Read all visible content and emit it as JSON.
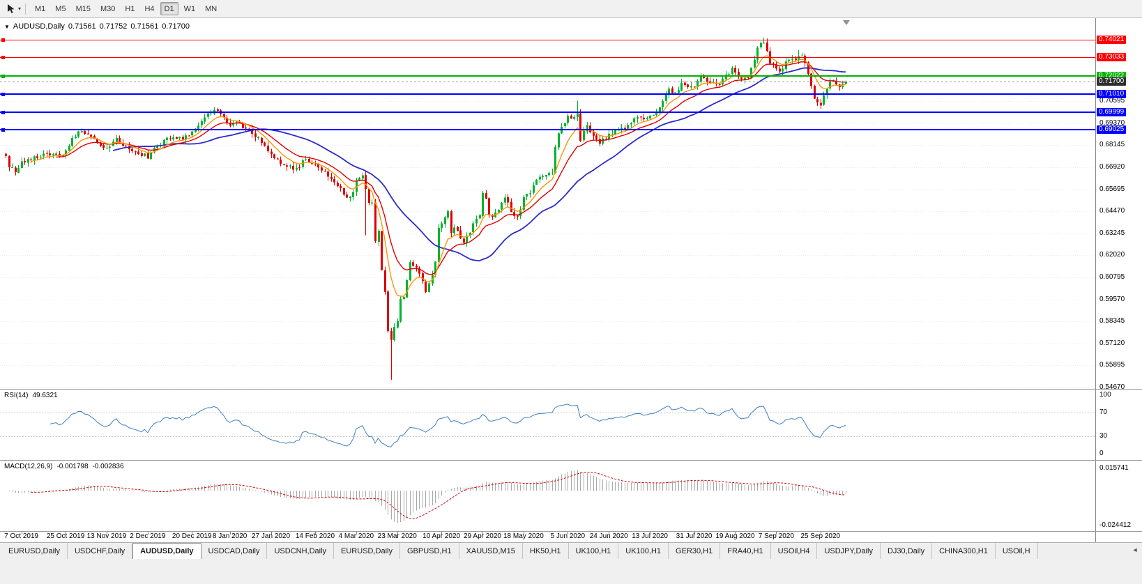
{
  "ui_icons": {
    "collapse_glyph": "▼",
    "caret_glyph": "▾",
    "tab_scroll_glyph": "◄"
  },
  "toolbar": {
    "timeframes": [
      "M1",
      "M5",
      "M15",
      "M30",
      "H1",
      "H4",
      "D1",
      "W1",
      "MN"
    ],
    "active_timeframe": "D1"
  },
  "chart": {
    "symbol_title": "AUDUSD,Daily",
    "open": "0.71561",
    "high": "0.71752",
    "low": "0.71561",
    "close": "0.71700"
  },
  "price_axis": {
    "grid": [
      "0.70595",
      "0.69370",
      "0.68145",
      "0.66920",
      "0.65695",
      "0.64470",
      "0.63245",
      "0.62020",
      "0.60795",
      "0.59570",
      "0.58345",
      "0.57120",
      "0.55895",
      "0.54670"
    ],
    "badges": [
      {
        "text": "0.74021",
        "price": 0.74021,
        "color": "#FF0000"
      },
      {
        "text": "0.73033",
        "price": 0.73033,
        "color": "#FF0000"
      },
      {
        "text": "0.72022",
        "price": 0.72022,
        "color": "#00B400"
      },
      {
        "text": "0.71010",
        "price": 0.7101,
        "color": "#0000FF"
      },
      {
        "text": "0.69999",
        "price": 0.69999,
        "color": "#0000FF"
      },
      {
        "text": "0.69025",
        "price": 0.69025,
        "color": "#0000FF"
      },
      {
        "text": "0.71700",
        "price": 0.717,
        "color": "#2E2E2E",
        "current": true
      }
    ]
  },
  "rsi": {
    "label": "RSI(14)",
    "value": "49.6321",
    "color": "#3E7FC1",
    "levels": [
      70,
      30
    ],
    "axis": [
      "100",
      "70",
      "30",
      "0"
    ]
  },
  "macd": {
    "label": "MACD(12,26,9)",
    "main_value": "-0.001798",
    "signal_value": "-0.002836",
    "hist_color": "#A8A8A8",
    "signal_color": "#D00000",
    "axis": [
      {
        "text": "0.015741",
        "value": 0.015741
      },
      {
        "text": "-0.024412",
        "value": -0.024412
      }
    ]
  },
  "tabbar": {
    "tabs": [
      {
        "label": "EURUSD,Daily"
      },
      {
        "label": "USDCHF,Daily"
      },
      {
        "label": "AUDUSD,Daily",
        "active": true
      },
      {
        "label": "USDCAD,Daily"
      },
      {
        "label": "USDCNH,Daily"
      },
      {
        "label": "EURUSD,Daily"
      },
      {
        "label": "GBPUSD,H1"
      },
      {
        "label": "XAUUSD,M15"
      },
      {
        "label": "HK50,H1"
      },
      {
        "label": "UK100,H1"
      },
      {
        "label": "UK100,H1"
      },
      {
        "label": "GER30,H1"
      },
      {
        "label": "FRA40,H1"
      },
      {
        "label": "USOil,H4"
      },
      {
        "label": "USDJPY,Daily"
      },
      {
        "label": "DJ30,Daily"
      },
      {
        "label": "CHINA300,H1"
      },
      {
        "label": "USOil,H"
      }
    ]
  },
  "chart_data": {
    "type": "candlestick",
    "symbol": "AUDUSD",
    "timeframe": "Daily",
    "ohlc_display": {
      "open": 0.71561,
      "high": 0.71752,
      "low": 0.71561,
      "close": 0.717
    },
    "ylim": [
      0.54589,
      0.75223
    ],
    "candles": 267,
    "x_offset": 8,
    "x_step": 4.53,
    "bull_color": "#00B22D",
    "bear_color": "#DD0000",
    "anchors": [
      [
        0,
        0.676
      ],
      [
        1,
        0.67
      ],
      [
        3,
        0.667
      ],
      [
        5,
        0.6715
      ],
      [
        9,
        0.6745
      ],
      [
        13,
        0.677
      ],
      [
        17,
        0.6755
      ],
      [
        19,
        0.679
      ],
      [
        21,
        0.685
      ],
      [
        23,
        0.689
      ],
      [
        26,
        0.688
      ],
      [
        29,
        0.682
      ],
      [
        32,
        0.679
      ],
      [
        35,
        0.6845
      ],
      [
        38,
        0.681
      ],
      [
        41,
        0.677
      ],
      [
        44,
        0.676
      ],
      [
        45,
        0.6745
      ],
      [
        47,
        0.68
      ],
      [
        50,
        0.684
      ],
      [
        53,
        0.686
      ],
      [
        56,
        0.685
      ],
      [
        59,
        0.6885
      ],
      [
        62,
        0.695
      ],
      [
        65,
        0.7
      ],
      [
        66,
        0.702
      ],
      [
        68,
        0.6985
      ],
      [
        71,
        0.693
      ],
      [
        73,
        0.6955
      ],
      [
        76,
        0.6905
      ],
      [
        80,
        0.6855
      ],
      [
        84,
        0.677
      ],
      [
        88,
        0.6705
      ],
      [
        92,
        0.6685
      ],
      [
        95,
        0.674
      ],
      [
        99,
        0.67
      ],
      [
        103,
        0.662
      ],
      [
        106,
        0.6585
      ],
      [
        108,
        0.6515
      ],
      [
        110,
        0.6555
      ],
      [
        111,
        0.6625
      ],
      [
        113,
        0.664
      ],
      [
        114,
        0.658
      ],
      [
        115,
        0.65
      ],
      [
        116,
        0.649
      ],
      [
        117,
        0.629
      ],
      [
        118,
        0.634
      ],
      [
        119,
        0.612
      ],
      [
        120,
        0.599
      ],
      [
        121,
        0.578
      ],
      [
        122,
        0.574
      ],
      [
        123,
        0.58
      ],
      [
        124,
        0.583
      ],
      [
        125,
        0.597
      ],
      [
        126,
        0.596
      ],
      [
        127,
        0.606
      ],
      [
        128,
        0.617
      ],
      [
        130,
        0.614
      ],
      [
        132,
        0.606
      ],
      [
        133,
        0.599
      ],
      [
        135,
        0.609
      ],
      [
        136,
        0.616
      ],
      [
        137,
        0.635
      ],
      [
        140,
        0.644
      ],
      [
        141,
        0.632
      ],
      [
        142,
        0.636
      ],
      [
        145,
        0.628
      ],
      [
        147,
        0.633
      ],
      [
        148,
        0.639
      ],
      [
        150,
        0.642
      ],
      [
        151,
        0.655
      ],
      [
        152,
        0.651
      ],
      [
        153,
        0.642
      ],
      [
        155,
        0.643
      ],
      [
        158,
        0.653
      ],
      [
        160,
        0.645
      ],
      [
        162,
        0.641
      ],
      [
        164,
        0.652
      ],
      [
        166,
        0.655
      ],
      [
        169,
        0.665
      ],
      [
        173,
        0.6665
      ],
      [
        174,
        0.68
      ],
      [
        175,
        0.689
      ],
      [
        177,
        0.694
      ],
      [
        178,
        0.697
      ],
      [
        180,
        0.696
      ],
      [
        181,
        0.7
      ],
      [
        182,
        0.685
      ],
      [
        184,
        0.692
      ],
      [
        188,
        0.683
      ],
      [
        191,
        0.687
      ],
      [
        194,
        0.69
      ],
      [
        197,
        0.692
      ],
      [
        200,
        0.698
      ],
      [
        202,
        0.695
      ],
      [
        204,
        0.698
      ],
      [
        206,
        0.7
      ],
      [
        208,
        0.706
      ],
      [
        210,
        0.713
      ],
      [
        212,
        0.71
      ],
      [
        214,
        0.716
      ],
      [
        216,
        0.714
      ],
      [
        218,
        0.714
      ],
      [
        220,
        0.719
      ],
      [
        223,
        0.7157
      ],
      [
        226,
        0.716
      ],
      [
        228,
        0.72
      ],
      [
        230,
        0.7245
      ],
      [
        232,
        0.719
      ],
      [
        235,
        0.719
      ],
      [
        237,
        0.729
      ],
      [
        238,
        0.7365
      ],
      [
        239,
        0.7375
      ],
      [
        240,
        0.7375
      ],
      [
        241,
        0.734
      ],
      [
        242,
        0.727
      ],
      [
        245,
        0.7215
      ],
      [
        247,
        0.728
      ],
      [
        250,
        0.73
      ],
      [
        251,
        0.731
      ],
      [
        252,
        0.731
      ],
      [
        254,
        0.722
      ],
      [
        255,
        0.715
      ],
      [
        256,
        0.707
      ],
      [
        257,
        0.705
      ],
      [
        258,
        0.703
      ],
      [
        259,
        0.709
      ],
      [
        260,
        0.713
      ],
      [
        261,
        0.716
      ],
      [
        262,
        0.718
      ],
      [
        263,
        0.716
      ],
      [
        264,
        0.714
      ],
      [
        265,
        0.7156
      ],
      [
        266,
        0.717
      ]
    ],
    "special_wicks": [
      {
        "i": 114,
        "low": 0.6313
      },
      {
        "i": 122,
        "low": 0.551
      },
      {
        "i": 181,
        "high": 0.7063
      },
      {
        "i": 240,
        "high": 0.7414
      },
      {
        "i": 251,
        "high": 0.7345
      }
    ],
    "moving_averages": [
      {
        "type": "ema",
        "period": 8,
        "color": "#FF9500",
        "width": 1.4
      },
      {
        "type": "ema",
        "period": 16,
        "color": "#E00000",
        "width": 1.4
      },
      {
        "type": "sma",
        "period": 34,
        "color": "#2B2BC8",
        "width": 1.8
      }
    ],
    "h_lines": [
      {
        "price": 0.74021,
        "color": "#FF0000",
        "width": 1
      },
      {
        "price": 0.73033,
        "color": "#FF0000",
        "width": 1
      },
      {
        "price": 0.72022,
        "color": "#00B400",
        "width": 2
      },
      {
        "price": 0.7101,
        "color": "#0000FF",
        "width": 2
      },
      {
        "price": 0.69999,
        "color": "#0000FF",
        "width": 2
      },
      {
        "price": 0.69025,
        "color": "#0000FF",
        "width": 2
      }
    ],
    "current_price_line": {
      "price": 0.717,
      "color": "#9B9B9B"
    },
    "x_ticks": [
      {
        "label": "7 Oct 2019",
        "i": 5
      },
      {
        "label": "25 Oct 2019",
        "i": 19
      },
      {
        "label": "13 Nov 2019",
        "i": 32
      },
      {
        "label": "2 Dec 2019",
        "i": 45
      },
      {
        "label": "20 Dec 2019",
        "i": 59
      },
      {
        "label": "8 Jan 2020",
        "i": 71
      },
      {
        "label": "27 Jan 2020",
        "i": 84
      },
      {
        "label": "14 Feb 2020",
        "i": 98
      },
      {
        "label": "4 Mar 2020",
        "i": 111
      },
      {
        "label": "23 Mar 2020",
        "i": 124
      },
      {
        "label": "10 Apr 2020",
        "i": 138
      },
      {
        "label": "29 Apr 2020",
        "i": 151
      },
      {
        "label": "18 May 2020",
        "i": 164
      },
      {
        "label": "5 Jun 2020",
        "i": 178
      },
      {
        "label": "24 Jun 2020",
        "i": 191
      },
      {
        "label": "13 Jul 2020",
        "i": 204
      },
      {
        "label": "31 Jul 2020",
        "i": 218
      },
      {
        "label": "19 Aug 2020",
        "i": 231
      },
      {
        "label": "7 Sep 2020",
        "i": 244
      },
      {
        "label": "25 Sep 2020",
        "i": 258
      }
    ]
  }
}
